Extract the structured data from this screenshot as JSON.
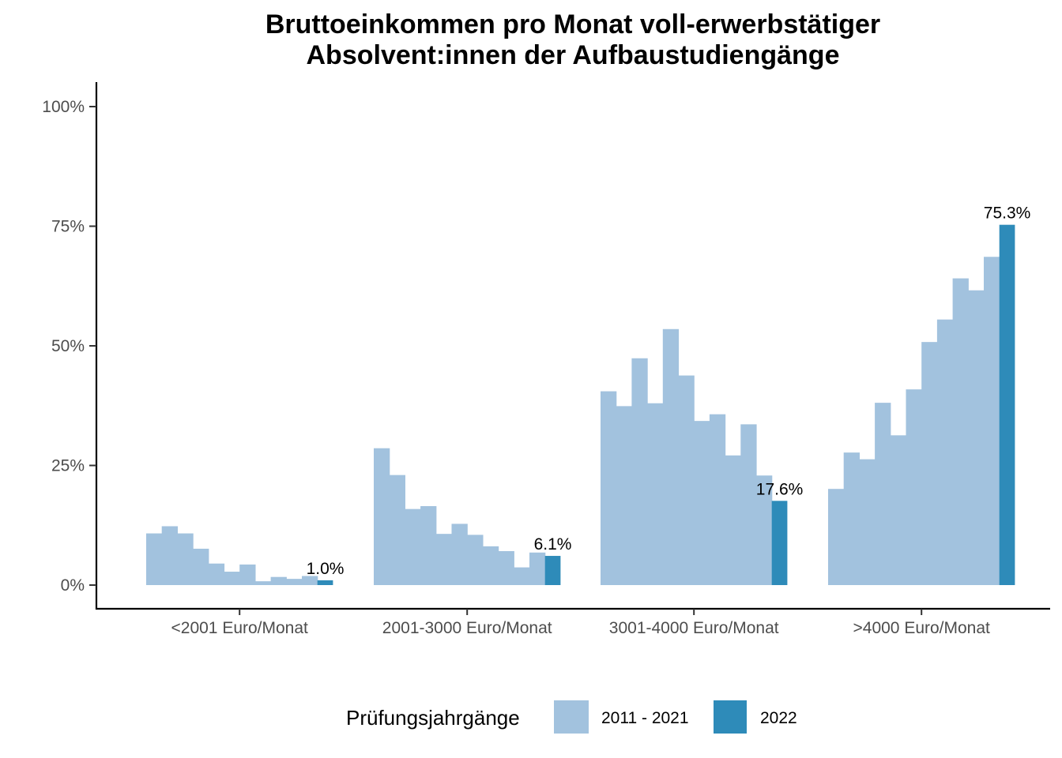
{
  "chart_data": {
    "type": "bar",
    "title": "Bruttoeinkommen pro Monat voll-erwerbstätiger",
    "subtitle": "Absolvent:innen der Aufbaustudiengänge",
    "xlabel": "",
    "ylabel": "",
    "ylim": [
      0,
      100
    ],
    "y_ticks": [
      {
        "value": 0,
        "label": "0%"
      },
      {
        "value": 25,
        "label": "25%"
      },
      {
        "value": 50,
        "label": "50%"
      },
      {
        "value": 75,
        "label": "75%"
      },
      {
        "value": 100,
        "label": "100%"
      }
    ],
    "categories": [
      "<2001 Euro/Monat",
      "2001-3000 Euro/Monat",
      "3001-4000 Euro/Monat",
      ">4000 Euro/Monat"
    ],
    "series": [
      {
        "name": "2011 - 2021",
        "color": "#a2c2de",
        "values": [
          [
            10.8,
            12.3,
            10.8,
            7.6,
            4.5,
            2.8,
            4.3,
            0.8,
            1.7,
            1.3,
            1.9
          ],
          [
            28.6,
            23.0,
            15.9,
            16.5,
            10.7,
            12.8,
            10.5,
            8.1,
            7.1,
            3.7,
            6.8
          ],
          [
            40.5,
            37.4,
            47.4,
            38.0,
            53.5,
            43.8,
            34.3,
            35.7,
            27.1,
            33.6,
            22.9
          ],
          [
            20.1,
            27.7,
            26.3,
            38.1,
            31.3,
            40.9,
            50.8,
            55.5,
            64.1,
            61.6,
            68.6
          ]
        ]
      },
      {
        "name": "2022",
        "color": "#2e8bb9",
        "values": [
          1.0,
          6.1,
          17.6,
          75.3
        ],
        "labels": [
          "1.0%",
          "6.1%",
          "17.6%",
          "75.3%"
        ]
      }
    ],
    "legend": {
      "title": "Prüfungsjahrgänge",
      "position": "bottom",
      "items": [
        {
          "label": "2011 - 2021",
          "color": "#a2c2de"
        },
        {
          "label": "2022",
          "color": "#2e8bb9"
        }
      ]
    },
    "grid": false
  }
}
